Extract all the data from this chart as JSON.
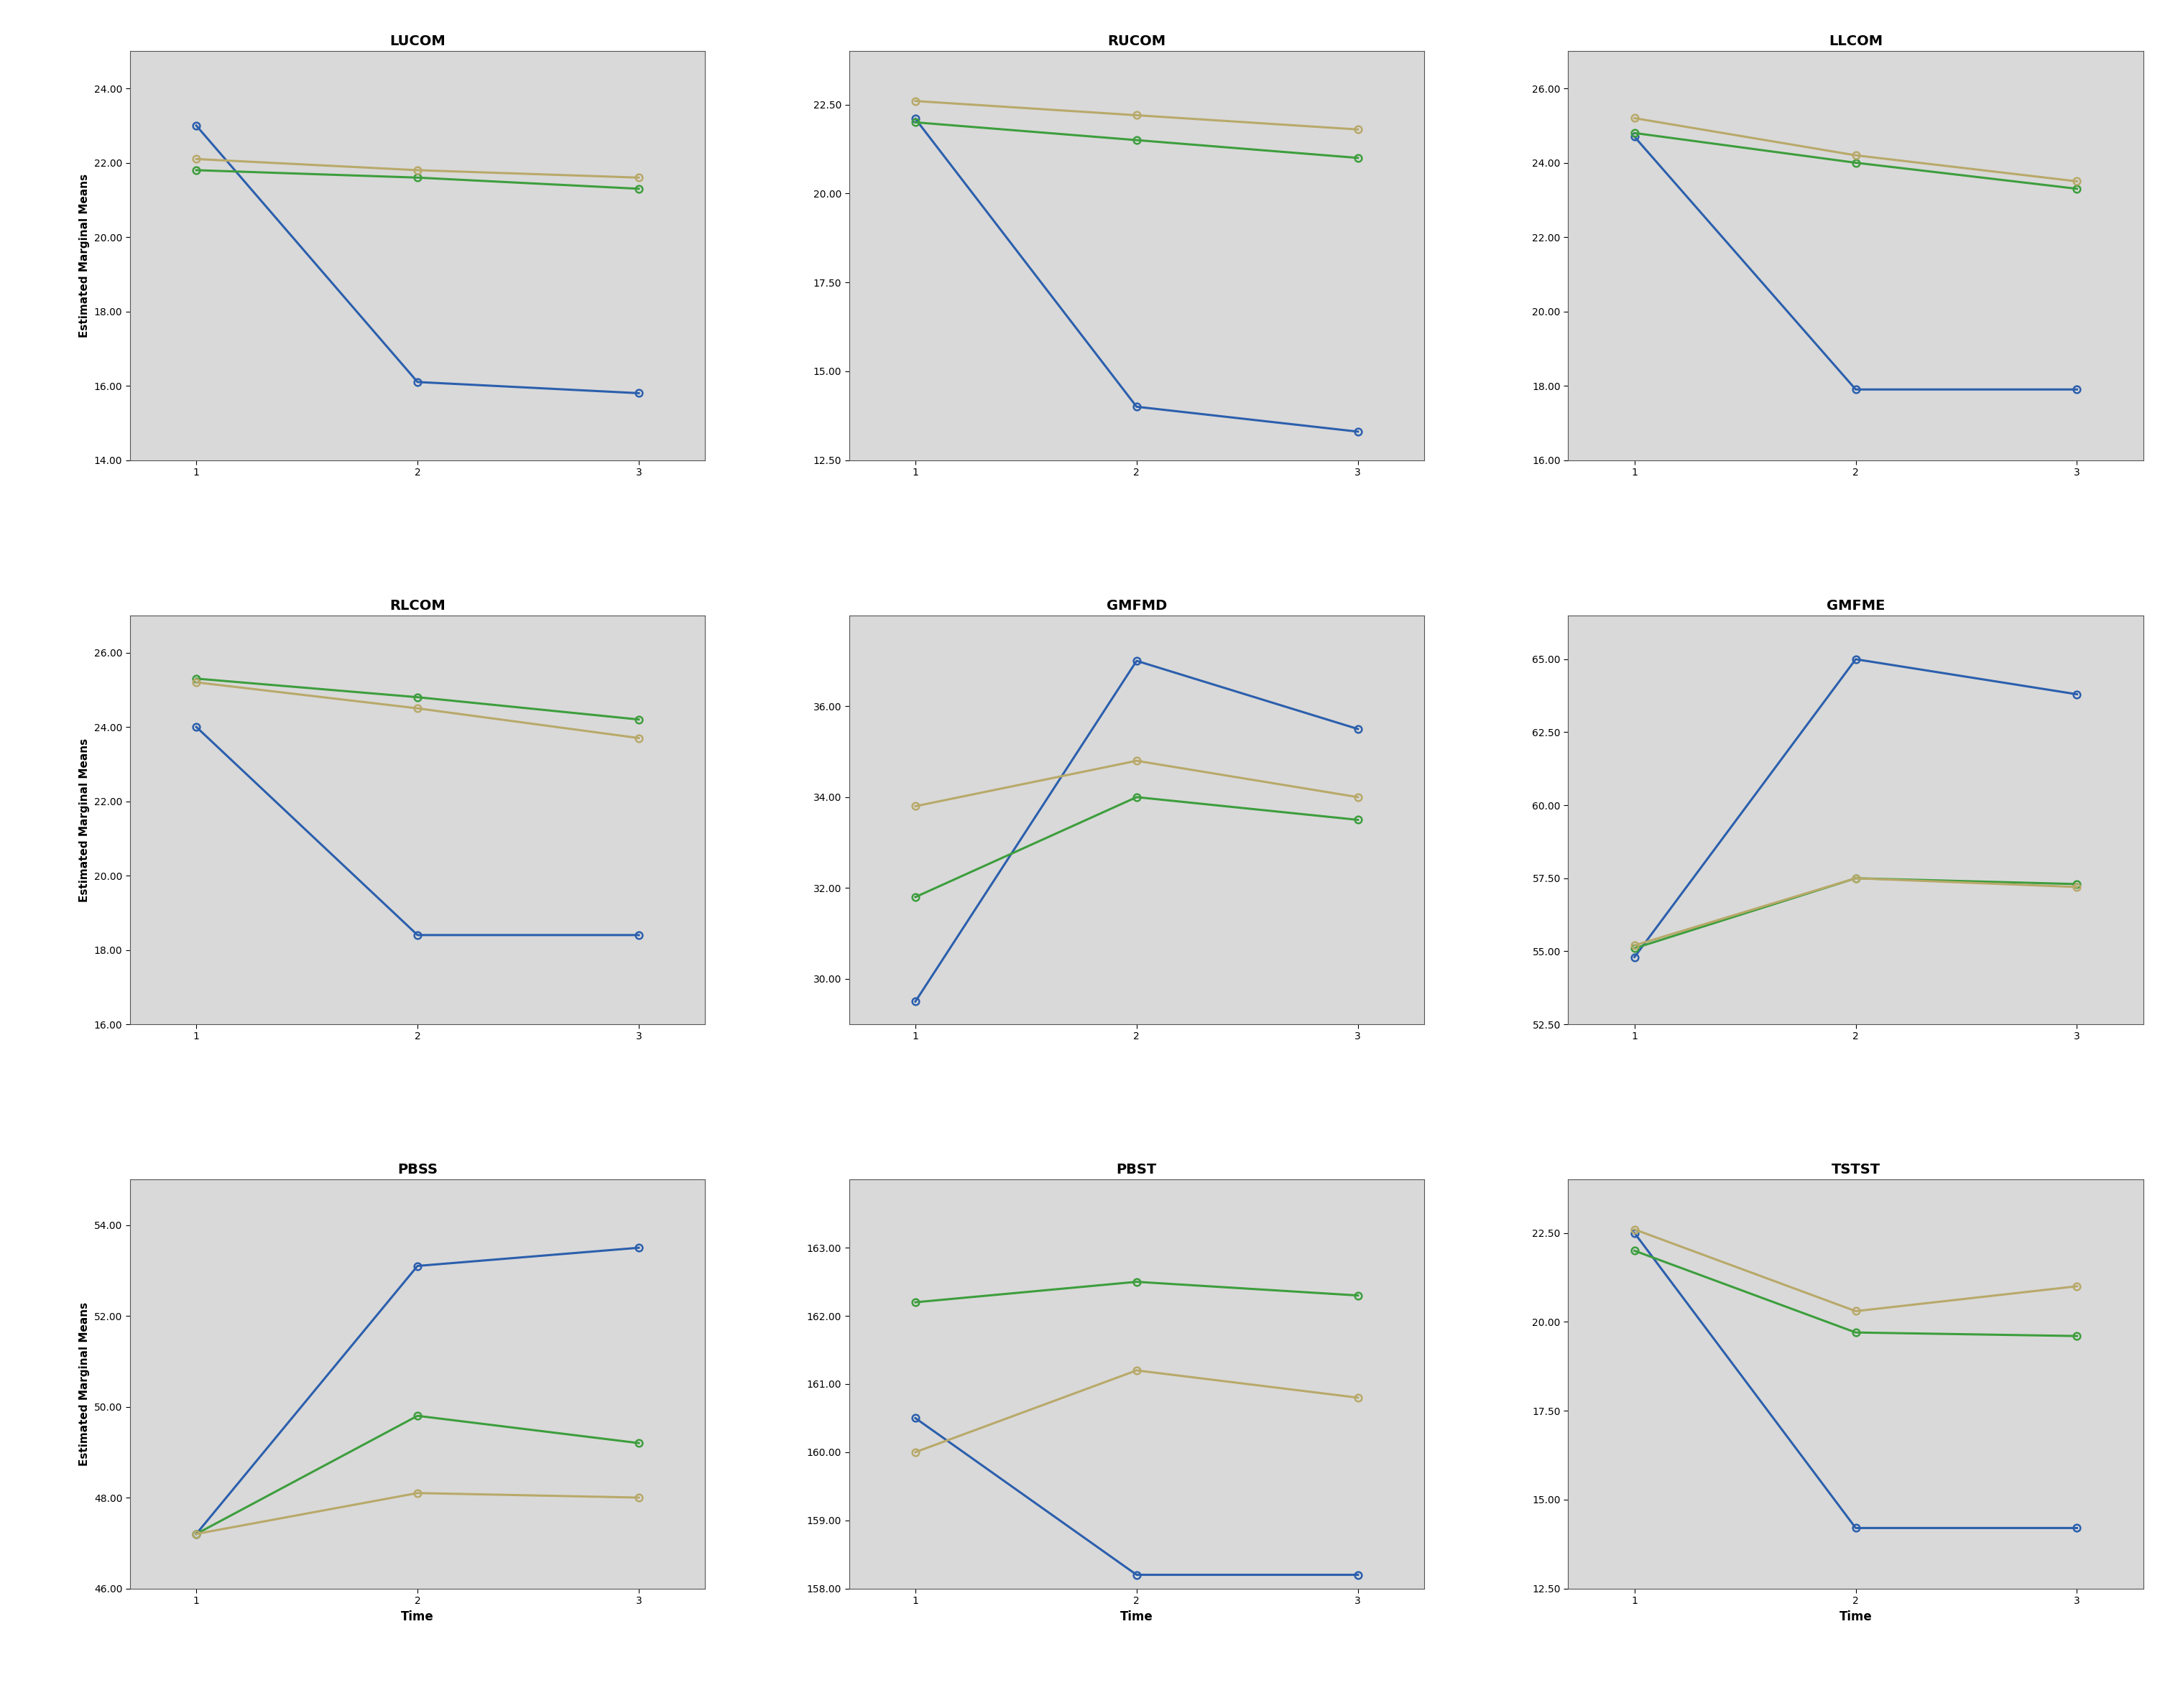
{
  "subplots": [
    {
      "title": "LUCOM",
      "ylim": [
        14.0,
        25.0
      ],
      "yticks": [
        14.0,
        16.0,
        18.0,
        20.0,
        22.0,
        24.0
      ],
      "blue": [
        23.0,
        16.1,
        15.8
      ],
      "green": [
        21.8,
        21.6,
        21.3
      ],
      "tan": [
        22.1,
        21.8,
        21.6
      ]
    },
    {
      "title": "RUCOM",
      "ylim": [
        12.5,
        24.0
      ],
      "yticks": [
        12.5,
        15.0,
        17.5,
        20.0,
        22.5
      ],
      "blue": [
        22.1,
        14.0,
        13.3
      ],
      "green": [
        22.0,
        21.5,
        21.0
      ],
      "tan": [
        22.6,
        22.2,
        21.8
      ]
    },
    {
      "title": "LLCOM",
      "ylim": [
        16.0,
        27.0
      ],
      "yticks": [
        16.0,
        18.0,
        20.0,
        22.0,
        24.0,
        26.0
      ],
      "blue": [
        24.7,
        17.9,
        17.9
      ],
      "green": [
        24.8,
        24.0,
        23.3
      ],
      "tan": [
        25.2,
        24.2,
        23.5
      ]
    },
    {
      "title": "RLCOM",
      "ylim": [
        16.0,
        27.0
      ],
      "yticks": [
        16.0,
        18.0,
        20.0,
        22.0,
        24.0,
        26.0
      ],
      "blue": [
        24.0,
        18.4,
        18.4
      ],
      "green": [
        25.3,
        24.8,
        24.2
      ],
      "tan": [
        25.2,
        24.5,
        23.7
      ]
    },
    {
      "title": "GMFMD",
      "ylim": [
        29.0,
        38.0
      ],
      "yticks": [
        30.0,
        32.0,
        34.0,
        36.0
      ],
      "blue": [
        29.5,
        37.0,
        35.5
      ],
      "green": [
        31.8,
        34.0,
        33.5
      ],
      "tan": [
        33.8,
        34.8,
        34.0
      ]
    },
    {
      "title": "GMFME",
      "ylim": [
        52.5,
        66.5
      ],
      "yticks": [
        52.5,
        55.0,
        57.5,
        60.0,
        62.5,
        65.0
      ],
      "blue": [
        54.8,
        65.0,
        63.8
      ],
      "green": [
        55.1,
        57.5,
        57.3
      ],
      "tan": [
        55.2,
        57.5,
        57.2
      ]
    },
    {
      "title": "PBSS",
      "ylim": [
        46.0,
        55.0
      ],
      "yticks": [
        46.0,
        48.0,
        50.0,
        52.0,
        54.0
      ],
      "blue": [
        47.2,
        53.1,
        53.5
      ],
      "green": [
        47.2,
        49.8,
        49.2
      ],
      "tan": [
        47.2,
        48.1,
        48.0
      ]
    },
    {
      "title": "PBST",
      "ylim": [
        158.0,
        164.0
      ],
      "yticks": [
        158.0,
        159.0,
        160.0,
        161.0,
        162.0,
        163.0
      ],
      "blue": [
        160.5,
        158.2,
        158.2
      ],
      "green": [
        162.2,
        162.5,
        162.3
      ],
      "tan": [
        160.0,
        161.2,
        160.8
      ]
    },
    {
      "title": "TSTST",
      "ylim": [
        12.5,
        24.0
      ],
      "yticks": [
        12.5,
        15.0,
        17.5,
        20.0,
        22.5
      ],
      "blue": [
        22.5,
        14.2,
        14.2
      ],
      "green": [
        22.0,
        19.7,
        19.6
      ],
      "tan": [
        22.6,
        20.3,
        21.0
      ]
    }
  ],
  "colors": {
    "blue": "#2b5fad",
    "green": "#3d9e3d",
    "tan": "#b8a96a"
  },
  "bg_color": "#d9d9d9",
  "fig_bg": "#ffffff",
  "row_ylabel": "Estimated Marginal Means",
  "bottom_xlabel": "Time",
  "xticks": [
    1,
    2,
    3
  ],
  "xlim": [
    0.7,
    3.3
  ],
  "marker": "o",
  "markersize": 7,
  "linewidth": 2.2,
  "title_fontsize": 14,
  "tick_fontsize": 10,
  "label_fontsize": 12,
  "ylabel_fontsize": 11
}
